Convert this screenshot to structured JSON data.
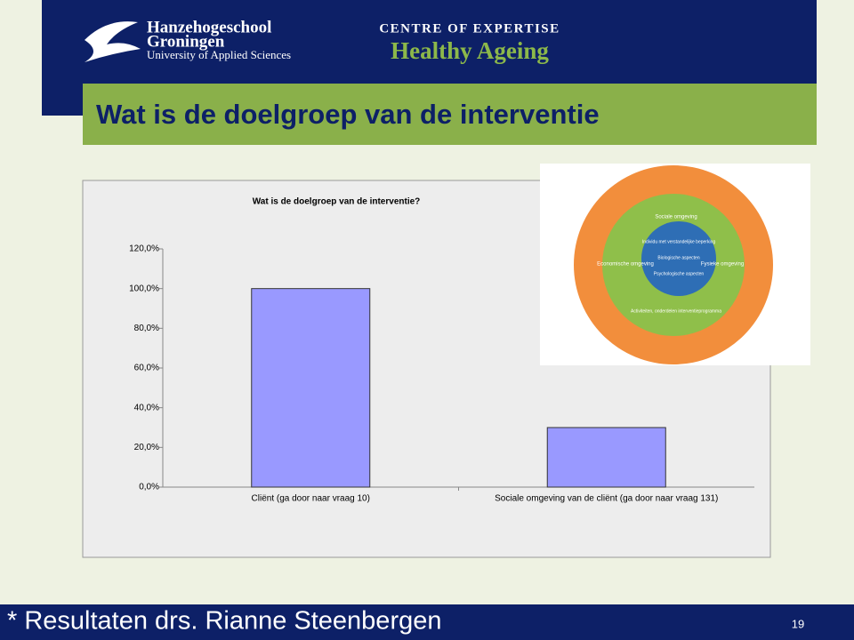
{
  "header": {
    "institution": [
      "Hanzehogeschool",
      "Groningen",
      "University of Applied Sciences"
    ],
    "centre": "CENTRE OF EXPERTISE",
    "centre_name": "Healthy Ageing"
  },
  "slide_title": "Wat is de doelgroep van de interventie",
  "chart_data": {
    "type": "bar",
    "title": "Wat is de doelgroep van de interventie?",
    "categories": [
      "Cliënt (ga door naar vraag 10)",
      "Sociale omgeving van de cliënt (ga door naar vraag 131)"
    ],
    "values": [
      100,
      30
    ],
    "color": "#9999ff",
    "ylim": [
      0,
      120
    ],
    "yticks": [
      {
        "value": 0,
        "label": "0,0%"
      },
      {
        "value": 20,
        "label": "20,0%"
      },
      {
        "value": 40,
        "label": "40,0%"
      },
      {
        "value": 60,
        "label": "60,0%"
      },
      {
        "value": 80,
        "label": "80,0%"
      },
      {
        "value": 100,
        "label": "100,0%"
      },
      {
        "value": 120,
        "label": "120,0%"
      }
    ],
    "grid": false
  },
  "inset": {
    "rings": [
      "Sociale omgeving",
      "Economische omgeving",
      "Fysieke omgeving",
      "Individu met verstandelijke beperking",
      "Biologische aspecten",
      "Psychologische aspecten",
      "Activiteiten, onderdelen interventieprogramma"
    ]
  },
  "footer": {
    "text": "* Resultaten drs. Rianne Steenbergen",
    "page": "19"
  }
}
